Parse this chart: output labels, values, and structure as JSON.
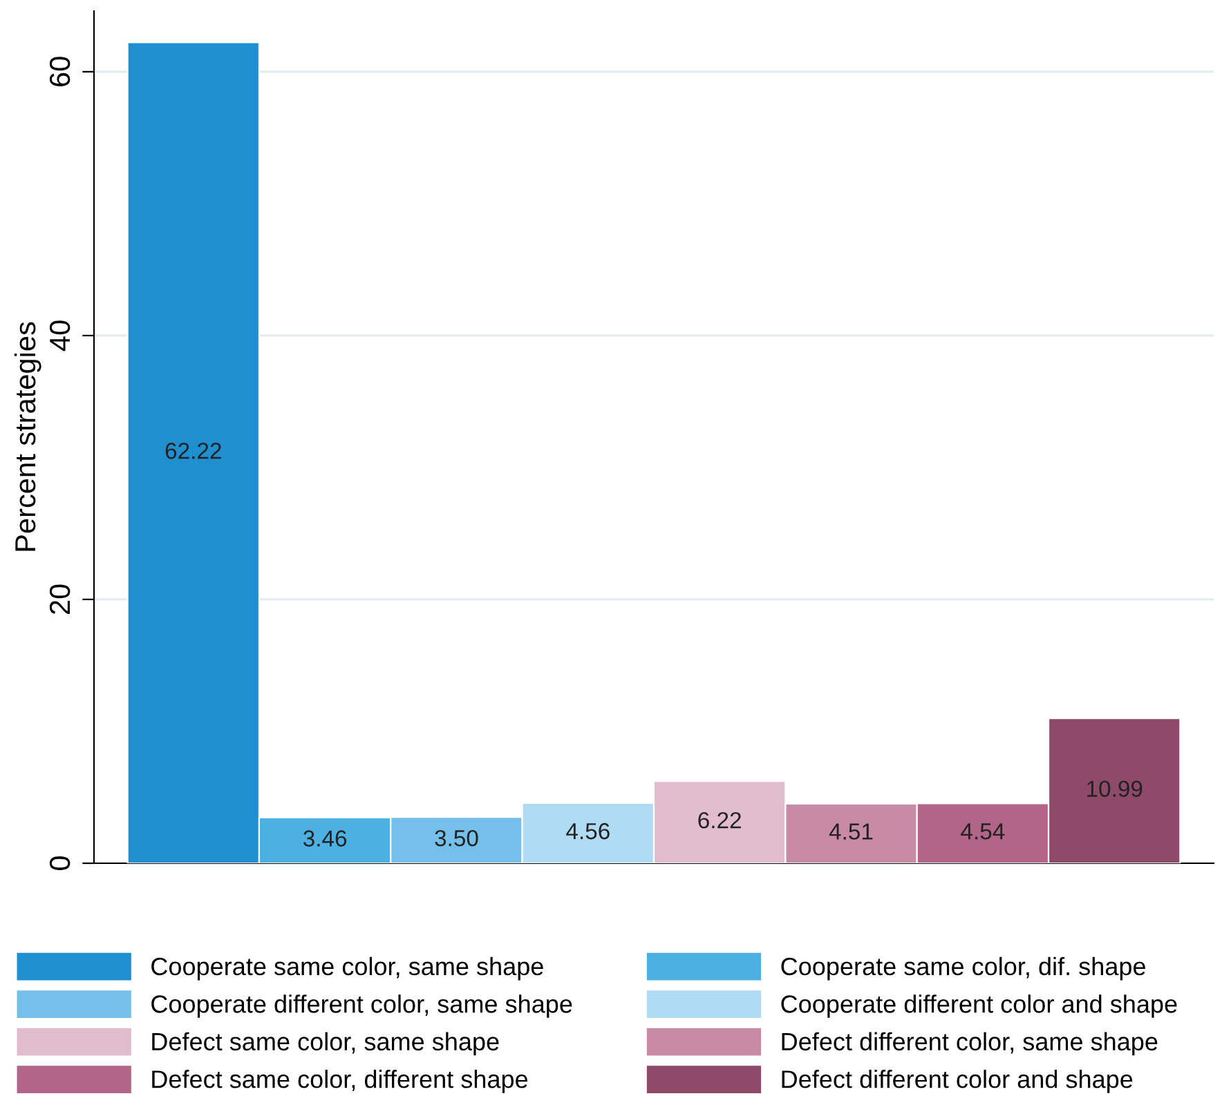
{
  "chart_data": {
    "type": "bar",
    "ylabel": "Percent strategies",
    "categories": [
      null
    ],
    "series": [
      {
        "name": "Cooperate same color, same shape",
        "color": "#1f8fd0",
        "values": [
          62.22
        ],
        "value_labels": [
          "62.22"
        ]
      },
      {
        "name": "Cooperate same color, dif. shape",
        "color": "#4db0e3",
        "values": [
          3.46
        ],
        "value_labels": [
          "3.46"
        ]
      },
      {
        "name": "Cooperate different color, same shape",
        "color": "#74c0ea",
        "values": [
          3.5
        ],
        "value_labels": [
          "3.50"
        ]
      },
      {
        "name": "Cooperate different color and shape",
        "color": "#b0dcf3",
        "values": [
          4.56
        ],
        "value_labels": [
          "4.56"
        ]
      },
      {
        "name": "Defect same color, same shape",
        "color": "#e0bccd",
        "values": [
          6.22
        ],
        "value_labels": [
          "6.22"
        ]
      },
      {
        "name": "Defect different color, same shape",
        "color": "#c98aa6",
        "values": [
          4.51
        ],
        "value_labels": [
          "4.51"
        ]
      },
      {
        "name": "Defect same color, different shape",
        "color": "#b26589",
        "values": [
          4.54
        ],
        "value_labels": [
          "4.54"
        ]
      },
      {
        "name": "Defect different color and shape",
        "color": "#8f4a6a",
        "values": [
          10.99
        ],
        "value_labels": [
          "10.99"
        ]
      }
    ],
    "ylim": [
      0,
      64.6
    ],
    "yticks": [
      0,
      20,
      40,
      60
    ],
    "grid": "y",
    "legend": "bottom"
  }
}
